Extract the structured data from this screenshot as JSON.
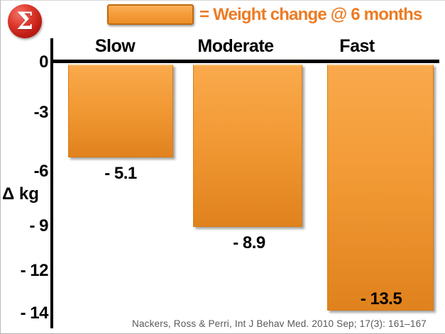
{
  "slide": {
    "sigma_symbol": "Σ",
    "legend": {
      "label": "= Weight change @ 6 months"
    },
    "citation": "Nackers, Ross & Perri, Int J Behav Med. 2010 Sep; 17(3): 161–167"
  },
  "colors": {
    "bar_fill_top": "#F9A94C",
    "bar_fill_bottom": "#E0821E",
    "bar_border": "#D87C17",
    "legend_text": "#ED7B23",
    "axis": "#000000",
    "category_text": "#000000",
    "citation_text": "#595959",
    "sigma_badge_red": "#C11E15"
  },
  "chart_data": {
    "type": "bar",
    "categories": [
      "Slow",
      "Moderate",
      "Fast"
    ],
    "values": [
      -5.1,
      -8.9,
      -13.5
    ],
    "value_labels": [
      "- 5.1",
      "- 8.9",
      "- 13.5"
    ],
    "title": "",
    "legend": "= Weight change @ 6 months",
    "xlabel": "",
    "ylabel": "Δ kg",
    "ylim": [
      -14,
      0
    ],
    "yticks": [
      "0",
      "-3",
      "-6",
      "- 9",
      "- 12",
      "- 14"
    ],
    "ytick_values": [
      0,
      -3,
      -6,
      -9,
      -12,
      -14
    ],
    "grid": false,
    "legend_position": "top",
    "orientation": "vertical-negative-from-zero"
  }
}
